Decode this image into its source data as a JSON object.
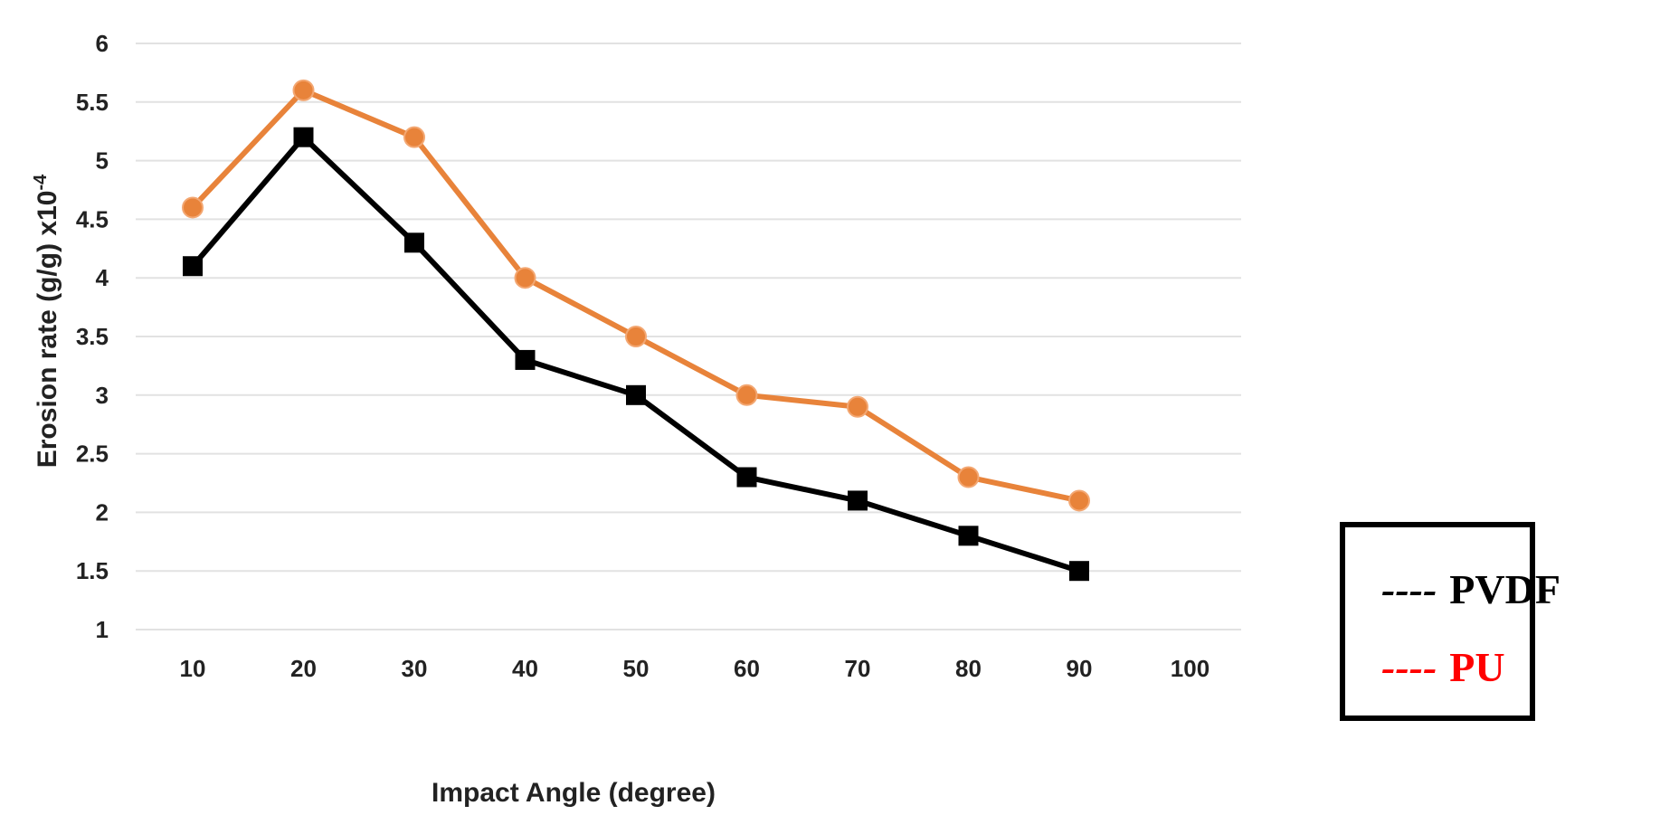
{
  "chart_data": {
    "type": "line",
    "title": "",
    "xlabel": "Impact Angle (degree)",
    "ylabel": "Erosion rate (g/g) x10",
    "ylabel_superscript": "-4",
    "x": [
      10,
      20,
      30,
      40,
      50,
      60,
      70,
      80,
      90
    ],
    "x_ticks": [
      "10",
      "20",
      "30",
      "40",
      "50",
      "60",
      "70",
      "80",
      "90",
      "100"
    ],
    "y_ticks": [
      "1",
      "1.5",
      "2",
      "2.5",
      "3",
      "3.5",
      "4",
      "4.5",
      "5",
      "5.5",
      "6"
    ],
    "ylim": [
      1,
      6
    ],
    "grid": true,
    "legend_position": "right",
    "series": [
      {
        "name": "PVDF",
        "marker": "square",
        "color": "#000000",
        "values": [
          4.1,
          5.2,
          4.3,
          3.3,
          3.0,
          2.3,
          2.1,
          1.8,
          1.5
        ]
      },
      {
        "name": "PU",
        "marker": "circle",
        "color": "#E8833A",
        "values": [
          4.6,
          5.6,
          5.2,
          4.0,
          3.5,
          3.0,
          2.9,
          2.3,
          2.1
        ]
      }
    ]
  },
  "legend": {
    "entries": [
      {
        "dash": "----",
        "label": "PVDF",
        "color": "#000000"
      },
      {
        "dash": "----",
        "label": "PU",
        "color": "#FF0000"
      }
    ]
  }
}
